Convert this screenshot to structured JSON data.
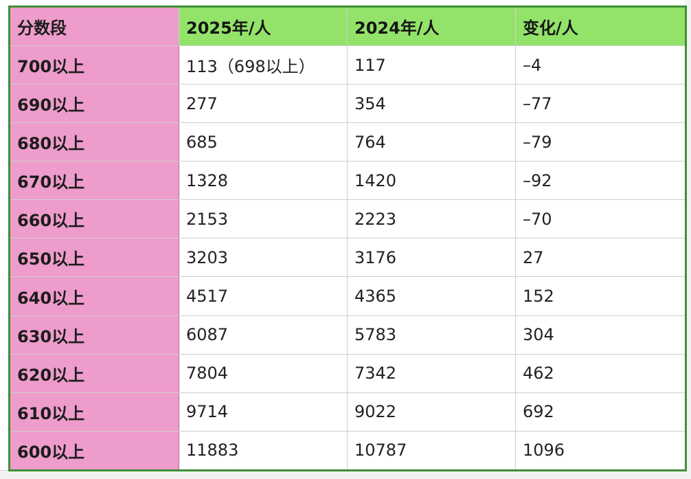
{
  "table": {
    "headers": [
      "分数段",
      "2025年/人",
      "2024年/人",
      "变化/人"
    ],
    "rows": [
      [
        "700以上",
        "113（698以上）",
        "117",
        "–4"
      ],
      [
        "690以上",
        "277",
        "354",
        "–77"
      ],
      [
        "680以上",
        "685",
        "764",
        "–79"
      ],
      [
        "670以上",
        "1328",
        "1420",
        "–92"
      ],
      [
        "660以上",
        "2153",
        "2223",
        "–70"
      ],
      [
        "650以上",
        "3203",
        "3176",
        "27"
      ],
      [
        "640以上",
        "4517",
        "4365",
        "152"
      ],
      [
        "630以上",
        "6087",
        "5783",
        "304"
      ],
      [
        "620以上",
        "7804",
        "7342",
        "462"
      ],
      [
        "610以上",
        "9714",
        "9022",
        "692"
      ],
      [
        "600以上",
        "11883",
        "10787",
        "1096"
      ]
    ]
  },
  "colors": {
    "header_background": "#93e36a",
    "first_column_background": "#ee9ccb",
    "frame_border": "#3e8f34",
    "grid_line": "#cfcfcf"
  }
}
